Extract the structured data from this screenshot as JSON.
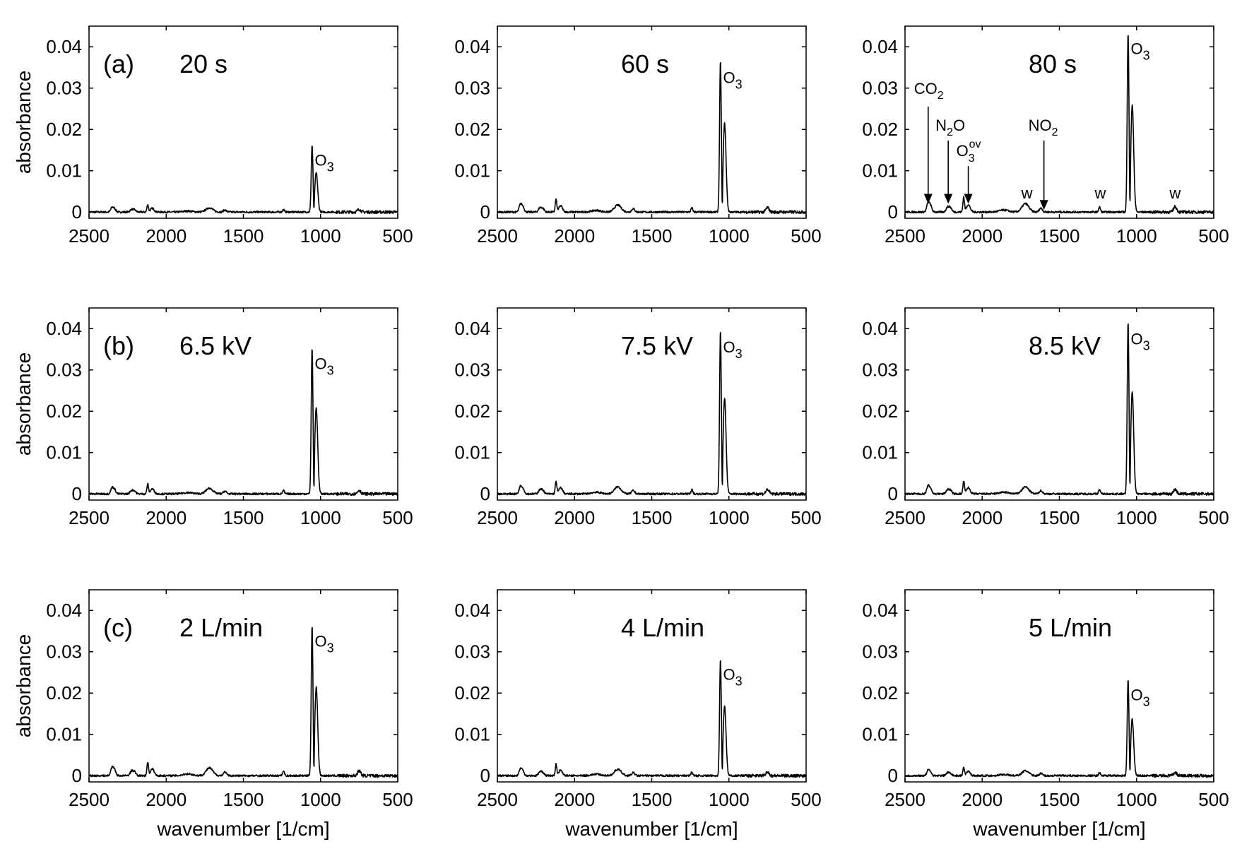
{
  "chart_data": [
    {
      "type": "line",
      "row_label": "(a)",
      "condition": "20 s",
      "peak_label": "O",
      "peak_sub": "3",
      "peak1_height": 0.016,
      "peak2_height": 0.0095,
      "water_scale": 0.6,
      "extra_annotations": false
    },
    {
      "type": "line",
      "row_label": "",
      "condition": "60 s",
      "peak_label": "O",
      "peak_sub": "3",
      "peak1_height": 0.036,
      "peak2_height": 0.0215,
      "water_scale": 1.0,
      "extra_annotations": false
    },
    {
      "type": "line",
      "row_label": "",
      "condition": "80 s",
      "peak_label": "O",
      "peak_sub": "3",
      "peak1_height": 0.043,
      "peak2_height": 0.0258,
      "water_scale": 1.2,
      "extra_annotations": true
    },
    {
      "type": "line",
      "row_label": "(b)",
      "condition": "6.5 kV",
      "peak_label": "O",
      "peak_sub": "3",
      "peak1_height": 0.035,
      "peak2_height": 0.0208,
      "water_scale": 0.8,
      "extra_annotations": false
    },
    {
      "type": "line",
      "row_label": "",
      "condition": "7.5 kV",
      "peak_label": "O",
      "peak_sub": "3",
      "peak1_height": 0.039,
      "peak2_height": 0.0232,
      "water_scale": 1.0,
      "extra_annotations": false
    },
    {
      "type": "line",
      "row_label": "",
      "condition": "8.5 kV",
      "peak_label": "O",
      "peak_sub": "3",
      "peak1_height": 0.041,
      "peak2_height": 0.0246,
      "water_scale": 1.0,
      "extra_annotations": false
    },
    {
      "type": "line",
      "row_label": "(c)",
      "condition": "2 L/min",
      "peak_label": "O",
      "peak_sub": "3",
      "peak1_height": 0.036,
      "peak2_height": 0.0215,
      "water_scale": 1.1,
      "extra_annotations": false
    },
    {
      "type": "line",
      "row_label": "",
      "condition": "4 L/min",
      "peak_label": "O",
      "peak_sub": "3",
      "peak1_height": 0.028,
      "peak2_height": 0.0168,
      "water_scale": 0.9,
      "extra_annotations": false
    },
    {
      "type": "line",
      "row_label": "",
      "condition": "5 L/min",
      "peak_label": "O",
      "peak_sub": "3",
      "peak1_height": 0.023,
      "peak2_height": 0.0137,
      "water_scale": 0.7,
      "extra_annotations": false
    }
  ],
  "axes": {
    "xlabel": "wavenumber [1/cm]",
    "ylabel": "absorbance",
    "xlim": [
      2500,
      500
    ],
    "ylim": [
      -0.0015,
      0.045
    ],
    "xticks": [
      2500,
      2000,
      1500,
      1000,
      500
    ],
    "yticks": [
      0,
      0.01,
      0.02,
      0.03,
      0.04
    ],
    "xtick_labels": [
      "2500",
      "2000",
      "1500",
      "1000",
      "500"
    ],
    "ytick_labels": [
      "0",
      "0.01",
      "0.02",
      "0.03",
      "0.04"
    ]
  },
  "annotations_80s": {
    "co2": {
      "text": "CO",
      "sub": "2",
      "arrow_x": 2350
    },
    "n2o": {
      "text": "N",
      "sub": "2",
      "suffix": "O",
      "arrow_x": 2220
    },
    "o3ov": {
      "text": "O",
      "sub": "3",
      "sup": "ov",
      "arrow_x": 2090
    },
    "no2": {
      "text": "NO",
      "sub": "2",
      "arrow_x": 1600
    },
    "water_marks": [
      {
        "text": "w",
        "x": 1710
      },
      {
        "text": "w",
        "x": 1235
      },
      {
        "text": "w",
        "x": 750
      }
    ]
  }
}
